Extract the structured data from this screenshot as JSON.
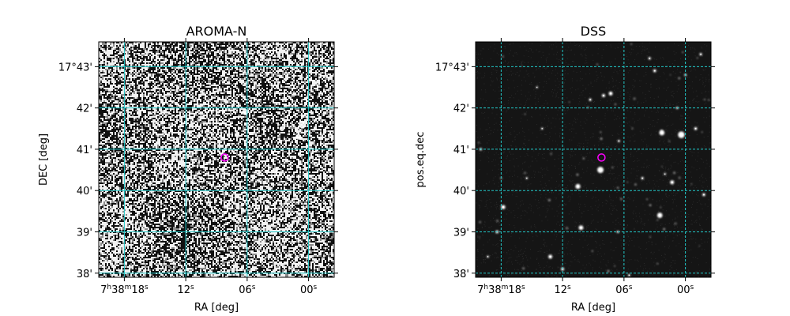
{
  "chart_data": [
    {
      "type": "image",
      "title": "AROMA-N",
      "xlabel": "RA [deg]",
      "ylabel": "DEC [deg]",
      "x_ticks": [
        {
          "value": "7h38m18s",
          "parts": [
            {
              "t": "7"
            },
            {
              "t": "h",
              "sup": true
            },
            {
              "t": "38"
            },
            {
              "t": "m",
              "sup": true
            },
            {
              "t": "18"
            },
            {
              "t": "s",
              "sup": true
            }
          ]
        },
        {
          "value": "12s",
          "parts": [
            {
              "t": "12"
            },
            {
              "t": "s",
              "sup": true
            }
          ]
        },
        {
          "value": "06s",
          "parts": [
            {
              "t": "06"
            },
            {
              "t": "s",
              "sup": true
            }
          ]
        },
        {
          "value": "00s",
          "parts": [
            {
              "t": "00"
            },
            {
              "t": "s",
              "sup": true
            }
          ]
        }
      ],
      "y_ticks": [
        "17°43'",
        "42'",
        "41'",
        "40'",
        "39'",
        "38'"
      ],
      "y_tick_values": [
        43,
        42,
        41,
        40,
        39,
        38
      ],
      "x_tick_values": [
        18,
        12,
        6,
        0
      ],
      "x_range_seconds": [
        20.5,
        -2.5
      ],
      "y_range_arcmin": [
        43.6,
        37.9
      ],
      "grid": true,
      "grid_style": "solid",
      "grid_color": "#22c8c8",
      "image_style": "noisy-binary",
      "marker": {
        "ra_seconds": 8.2,
        "dec_arcmin": 40.8,
        "color": "#ff00ff",
        "shape": "circle"
      },
      "sources": [
        {
          "ra": 6.2,
          "dec": 41.9,
          "r": 2.4
        },
        {
          "ra": 0.6,
          "dec": 41.6,
          "r": 3.0
        },
        {
          "ra": 1.0,
          "dec": 41.3,
          "r": 2.2
        },
        {
          "ra": 2.6,
          "dec": 41.5,
          "r": 2.0
        },
        {
          "ra": 3.2,
          "dec": 40.5,
          "r": 1.8
        },
        {
          "ra": 10.5,
          "dec": 40.3,
          "r": 1.6
        },
        {
          "ra": 8.4,
          "dec": 40.5,
          "r": 1.6
        },
        {
          "ra": 19.0,
          "dec": 39.8,
          "r": 1.4
        },
        {
          "ra": 4.0,
          "dec": 39.6,
          "r": 1.6
        },
        {
          "ra": 10.0,
          "dec": 39.3,
          "r": 1.4
        },
        {
          "ra": 13.5,
          "dec": 38.3,
          "r": 1.4
        },
        {
          "ra": 12.5,
          "dec": 38.0,
          "r": 1.3
        },
        {
          "ra": 1.2,
          "dec": 38.2,
          "r": 1.2
        },
        {
          "ra": 16.0,
          "dec": 38.8,
          "r": 1.2
        },
        {
          "ra": 2.0,
          "dec": 43.0,
          "r": 1.2
        }
      ]
    },
    {
      "type": "image",
      "title": "DSS",
      "xlabel": "RA [deg]",
      "ylabel": "pos.eq.dec",
      "x_ticks": [
        {
          "value": "7h38m18s",
          "parts": [
            {
              "t": "7"
            },
            {
              "t": "h",
              "sup": true
            },
            {
              "t": "38"
            },
            {
              "t": "m",
              "sup": true
            },
            {
              "t": "18"
            },
            {
              "t": "s",
              "sup": true
            }
          ]
        },
        {
          "value": "12s",
          "parts": [
            {
              "t": "12"
            },
            {
              "t": "s",
              "sup": true
            }
          ]
        },
        {
          "value": "06s",
          "parts": [
            {
              "t": "06"
            },
            {
              "t": "s",
              "sup": true
            }
          ]
        },
        {
          "value": "00s",
          "parts": [
            {
              "t": "00"
            },
            {
              "t": "s",
              "sup": true
            }
          ]
        }
      ],
      "y_ticks": [
        "17°43'",
        "42'",
        "41'",
        "40'",
        "39'",
        "38'"
      ],
      "y_tick_values": [
        43,
        42,
        41,
        40,
        39,
        38
      ],
      "x_tick_values": [
        18,
        12,
        6,
        0
      ],
      "x_range_seconds": [
        20.5,
        -2.5
      ],
      "y_range_arcmin": [
        43.6,
        37.9
      ],
      "grid": true,
      "grid_style": "dashed",
      "grid_color": "#22c8c8",
      "image_style": "star-field",
      "marker": {
        "ra_seconds": 8.2,
        "dec_arcmin": 40.8,
        "color": "#ff00ff",
        "shape": "circle"
      },
      "sources": [
        {
          "ra": 8.3,
          "dec": 40.5,
          "r": 4.0,
          "b": 1.0
        },
        {
          "ra": 10.5,
          "dec": 40.1,
          "r": 3.2,
          "b": 0.9
        },
        {
          "ra": 0.4,
          "dec": 41.35,
          "r": 4.2,
          "b": 1.0
        },
        {
          "ra": 2.3,
          "dec": 41.4,
          "r": 3.4,
          "b": 0.95
        },
        {
          "ra": 2.5,
          "dec": 39.4,
          "r": 3.4,
          "b": 0.95
        },
        {
          "ra": 1.3,
          "dec": 40.2,
          "r": 2.6,
          "b": 0.85
        },
        {
          "ra": 7.3,
          "dec": 42.35,
          "r": 2.6,
          "b": 0.85
        },
        {
          "ra": 8.0,
          "dec": 42.3,
          "r": 2.2,
          "b": 0.75
        },
        {
          "ra": 9.3,
          "dec": 42.2,
          "r": 1.8,
          "b": 0.6
        },
        {
          "ra": 10.2,
          "dec": 39.1,
          "r": 3.0,
          "b": 0.9
        },
        {
          "ra": 13.2,
          "dec": 38.4,
          "r": 2.6,
          "b": 0.85
        },
        {
          "ra": 12.0,
          "dec": 38.1,
          "r": 2.2,
          "b": 0.7
        },
        {
          "ra": 17.8,
          "dec": 39.6,
          "r": 2.8,
          "b": 0.85
        },
        {
          "ra": 18.4,
          "dec": 39.0,
          "r": 2.0,
          "b": 0.7
        },
        {
          "ra": 3.0,
          "dec": 42.9,
          "r": 2.0,
          "b": 0.7
        },
        {
          "ra": 0.0,
          "dec": 42.8,
          "r": 1.6,
          "b": 0.55
        },
        {
          "ra": -1.0,
          "dec": 41.5,
          "r": 2.0,
          "b": 0.75
        },
        {
          "ra": -1.8,
          "dec": 39.9,
          "r": 2.0,
          "b": 0.7
        },
        {
          "ra": 4.2,
          "dec": 40.3,
          "r": 1.8,
          "b": 0.6
        },
        {
          "ra": 6.5,
          "dec": 41.2,
          "r": 1.6,
          "b": 0.55
        },
        {
          "ra": 3.5,
          "dec": 43.2,
          "r": 1.8,
          "b": 0.6
        },
        {
          "ra": -1.5,
          "dec": 43.3,
          "r": 1.8,
          "b": 0.6
        },
        {
          "ra": 20.0,
          "dec": 41.0,
          "r": 1.8,
          "b": 0.6
        },
        {
          "ra": 15.5,
          "dec": 40.3,
          "r": 1.5,
          "b": 0.5
        },
        {
          "ra": 19.3,
          "dec": 38.4,
          "r": 1.5,
          "b": 0.5
        },
        {
          "ra": 0.8,
          "dec": 42.0,
          "r": 1.6,
          "b": 0.55
        },
        {
          "ra": 5.5,
          "dec": 37.95,
          "r": 1.6,
          "b": 0.55
        },
        {
          "ra": 14.0,
          "dec": 41.5,
          "r": 1.5,
          "b": 0.5
        },
        {
          "ra": 2.0,
          "dec": 40.4,
          "r": 1.5,
          "b": 0.5
        },
        {
          "ra": 6.6,
          "dec": 39.0,
          "r": 1.6,
          "b": 0.55
        },
        {
          "ra": 14.5,
          "dec": 42.5,
          "r": 1.4,
          "b": 0.45
        }
      ]
    }
  ]
}
